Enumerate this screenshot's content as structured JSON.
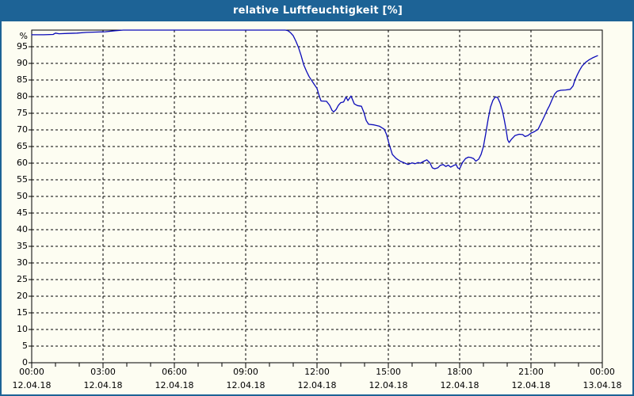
{
  "window": {
    "title": "relative Luftfeuchtigkeit [%]"
  },
  "colors": {
    "titlebar_bg": "#1d6396",
    "window_border": "#1d6396",
    "background": "#fdfdf2",
    "line": "#0a0ab8",
    "grid": "#000000",
    "frame": "#000000",
    "text": "#000000",
    "title_text": "#ffffff"
  },
  "chart_data": {
    "type": "line",
    "title": "relative Luftfeuchtigkeit [%]",
    "ylabel": "%",
    "y_unit_label": "%",
    "ylim": [
      0,
      100
    ],
    "y_ticks": [
      0,
      5,
      10,
      15,
      20,
      25,
      30,
      35,
      40,
      45,
      50,
      55,
      60,
      65,
      70,
      75,
      80,
      85,
      90,
      95
    ],
    "x_range_hours": [
      0,
      24
    ],
    "x_minor_tick_step_hours": 1,
    "grid": "dashed",
    "legend": "none",
    "x_ticks": [
      {
        "hour": 0,
        "time": "00:00",
        "date": "12.04.18"
      },
      {
        "hour": 3,
        "time": "03:00",
        "date": "12.04.18"
      },
      {
        "hour": 6,
        "time": "06:00",
        "date": "12.04.18"
      },
      {
        "hour": 9,
        "time": "09:00",
        "date": "12.04.18"
      },
      {
        "hour": 12,
        "time": "12:00",
        "date": "12.04.18"
      },
      {
        "hour": 15,
        "time": "15:00",
        "date": "12.04.18"
      },
      {
        "hour": 18,
        "time": "18:00",
        "date": "12.04.18"
      },
      {
        "hour": 21,
        "time": "21:00",
        "date": "12.04.18"
      },
      {
        "hour": 24,
        "time": "00:00",
        "date": "13.04.18"
      }
    ],
    "series": [
      {
        "name": "relative Luftfeuchtigkeit",
        "points": [
          [
            0,
            98.6
          ],
          [
            0.5,
            98.6
          ],
          [
            0.9,
            98.7
          ],
          [
            1.0,
            99.1
          ],
          [
            1.15,
            98.9
          ],
          [
            1.5,
            99.0
          ],
          [
            1.9,
            99.1
          ],
          [
            2.3,
            99.3
          ],
          [
            2.7,
            99.4
          ],
          [
            3.1,
            99.5
          ],
          [
            3.5,
            99.8
          ],
          [
            3.85,
            100
          ],
          [
            10.67,
            100
          ],
          [
            10.78,
            99.8
          ],
          [
            10.89,
            99.2
          ],
          [
            11.0,
            98.3
          ],
          [
            11.11,
            96.7
          ],
          [
            11.22,
            94.8
          ],
          [
            11.33,
            92.4
          ],
          [
            11.44,
            89.6
          ],
          [
            11.56,
            87.6
          ],
          [
            11.67,
            86.0
          ],
          [
            11.78,
            84.8
          ],
          [
            11.89,
            83.6
          ],
          [
            12.0,
            82.5
          ],
          [
            12.06,
            81.0
          ],
          [
            12.12,
            79.7
          ],
          [
            12.17,
            78.7
          ],
          [
            12.4,
            78.6
          ],
          [
            12.53,
            77.4
          ],
          [
            12.63,
            75.9
          ],
          [
            12.7,
            75.4
          ],
          [
            12.8,
            76.1
          ],
          [
            12.9,
            77.4
          ],
          [
            13.0,
            78.2
          ],
          [
            13.12,
            78.4
          ],
          [
            13.22,
            79.9
          ],
          [
            13.3,
            78.8
          ],
          [
            13.43,
            80.2
          ],
          [
            13.57,
            77.8
          ],
          [
            13.7,
            77.3
          ],
          [
            13.87,
            77.1
          ],
          [
            13.97,
            75.3
          ],
          [
            14.07,
            72.8
          ],
          [
            14.17,
            71.7
          ],
          [
            14.4,
            71.5
          ],
          [
            14.63,
            71.1
          ],
          [
            14.83,
            70.2
          ],
          [
            14.93,
            68.5
          ],
          [
            15.03,
            65.8
          ],
          [
            15.17,
            62.6
          ],
          [
            15.33,
            61.4
          ],
          [
            15.5,
            60.6
          ],
          [
            15.67,
            60.1
          ],
          [
            15.83,
            59.6
          ],
          [
            16.0,
            60.1
          ],
          [
            16.12,
            59.8
          ],
          [
            16.25,
            60.2
          ],
          [
            16.35,
            60.0
          ],
          [
            16.5,
            60.6
          ],
          [
            16.62,
            61.0
          ],
          [
            16.75,
            60.1
          ],
          [
            16.85,
            58.6
          ],
          [
            16.95,
            58.3
          ],
          [
            17.08,
            58.6
          ],
          [
            17.18,
            59.3
          ],
          [
            17.3,
            59.6
          ],
          [
            17.42,
            59.0
          ],
          [
            17.52,
            59.4
          ],
          [
            17.62,
            58.8
          ],
          [
            17.75,
            59.3
          ],
          [
            17.85,
            59.6
          ],
          [
            17.92,
            58.6
          ],
          [
            18.0,
            58.3
          ],
          [
            18.12,
            60.2
          ],
          [
            18.25,
            61.4
          ],
          [
            18.37,
            61.8
          ],
          [
            18.47,
            61.7
          ],
          [
            18.58,
            61.4
          ],
          [
            18.68,
            60.6
          ],
          [
            18.8,
            61.2
          ],
          [
            18.9,
            62.6
          ],
          [
            19.0,
            65.0
          ],
          [
            19.1,
            69.0
          ],
          [
            19.2,
            73.3
          ],
          [
            19.3,
            76.9
          ],
          [
            19.4,
            78.9
          ],
          [
            19.5,
            79.9
          ],
          [
            19.6,
            79.7
          ],
          [
            19.7,
            78.1
          ],
          [
            19.8,
            75.7
          ],
          [
            19.88,
            72.9
          ],
          [
            19.95,
            70.2
          ],
          [
            20.02,
            67.0
          ],
          [
            20.08,
            66.2
          ],
          [
            20.18,
            67.2
          ],
          [
            20.33,
            68.3
          ],
          [
            20.5,
            68.7
          ],
          [
            20.65,
            68.6
          ],
          [
            20.75,
            68.0
          ],
          [
            20.87,
            68.3
          ],
          [
            21.0,
            69.0
          ],
          [
            21.15,
            69.5
          ],
          [
            21.3,
            70.2
          ],
          [
            21.45,
            72.4
          ],
          [
            21.57,
            74.2
          ],
          [
            21.67,
            75.8
          ],
          [
            21.78,
            77.3
          ],
          [
            21.9,
            79.3
          ],
          [
            22.0,
            80.8
          ],
          [
            22.1,
            81.6
          ],
          [
            22.25,
            81.9
          ],
          [
            22.45,
            82.0
          ],
          [
            22.65,
            82.2
          ],
          [
            22.77,
            83.2
          ],
          [
            22.85,
            85.0
          ],
          [
            22.95,
            86.6
          ],
          [
            23.05,
            88.0
          ],
          [
            23.15,
            89.2
          ],
          [
            23.3,
            90.3
          ],
          [
            23.45,
            91.1
          ],
          [
            23.6,
            91.7
          ],
          [
            23.8,
            92.3
          ]
        ]
      }
    ]
  }
}
